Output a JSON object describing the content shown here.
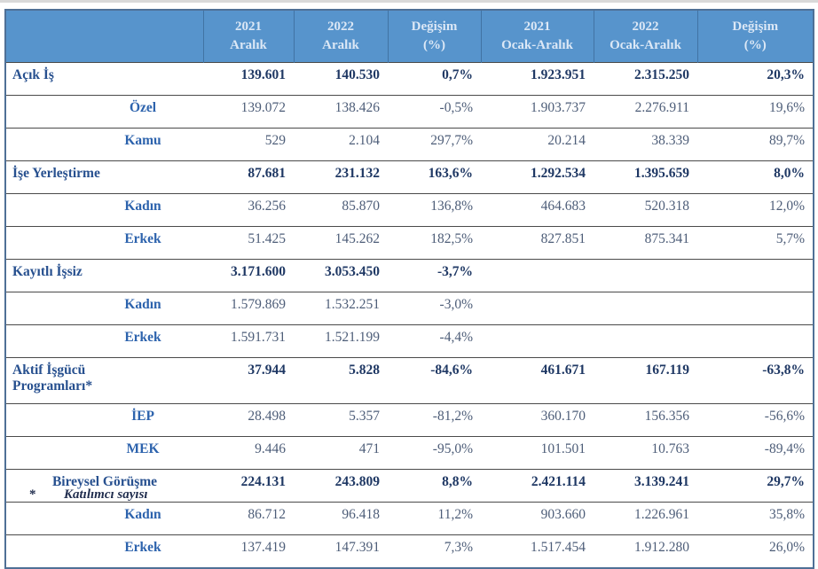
{
  "colors": {
    "header_bg": "#5794cc",
    "header_text": "#dce8f6",
    "category_label": "#27508f",
    "sub_label": "#2d63ad",
    "value_bold": "#1f3864",
    "value_regular": "#4d5d78",
    "row_divider": "#4a4a4a",
    "outer_border": "#4f7096",
    "top_rule": "#d9d9d9"
  },
  "table": {
    "columns": [
      {
        "label": ""
      },
      {
        "label": "2021\nAralık"
      },
      {
        "label": "2022\nAralık"
      },
      {
        "label": "Değişim\n(%)"
      },
      {
        "label": "2021\nOcak-Aralık"
      },
      {
        "label": "2022\nOcak-Aralık"
      },
      {
        "label": "Değişim\n(%)"
      }
    ],
    "rows": [
      {
        "label": "Açık İş",
        "style": "category",
        "label_align": "left",
        "values": [
          "139.601",
          "140.530",
          "0,7%",
          "1.923.951",
          "2.315.250",
          "20,3%"
        ]
      },
      {
        "label": "Özel",
        "style": "sub",
        "label_align": "indent-center",
        "values": [
          "139.072",
          "138.426",
          "-0,5%",
          "1.903.737",
          "2.276.911",
          "19,6%"
        ]
      },
      {
        "label": "Kamu",
        "style": "sub",
        "label_align": "indent-center",
        "values": [
          "529",
          "2.104",
          "297,7%",
          "20.214",
          "38.339",
          "89,7%"
        ]
      },
      {
        "label": "İşe Yerleştirme",
        "style": "category",
        "label_align": "left",
        "values": [
          "87.681",
          "231.132",
          "163,6%",
          "1.292.534",
          "1.395.659",
          "8,0%"
        ]
      },
      {
        "label": "Kadın",
        "style": "sub",
        "label_align": "indent-center",
        "values": [
          "36.256",
          "85.870",
          "136,8%",
          "464.683",
          "520.318",
          "12,0%"
        ]
      },
      {
        "label": "Erkek",
        "style": "sub",
        "label_align": "indent-center",
        "values": [
          "51.425",
          "145.262",
          "182,5%",
          "827.851",
          "875.341",
          "5,7%"
        ]
      },
      {
        "label": "Kayıtlı İşsiz",
        "style": "category",
        "label_align": "left",
        "values": [
          "3.171.600",
          "3.053.450",
          "-3,7%",
          "",
          "",
          ""
        ]
      },
      {
        "label": "Kadın",
        "style": "sub",
        "label_align": "indent-center",
        "values": [
          "1.579.869",
          "1.532.251",
          "-3,0%",
          "",
          "",
          ""
        ]
      },
      {
        "label": "Erkek",
        "style": "sub",
        "label_align": "indent-center",
        "values": [
          "1.591.731",
          "1.521.199",
          "-4,4%",
          "",
          "",
          ""
        ]
      },
      {
        "label": "Aktif İşgücü\nProgramları*",
        "style": "category",
        "label_align": "left",
        "tall": true,
        "values": [
          "37.944",
          "5.828",
          "-84,6%",
          "461.671",
          "167.119",
          "-63,8%"
        ]
      },
      {
        "label": "İEP",
        "style": "sub",
        "label_align": "indent-center",
        "values": [
          "28.498",
          "5.357",
          "-81,2%",
          "360.170",
          "156.356",
          "-56,6%"
        ]
      },
      {
        "label": "MEK",
        "style": "sub",
        "label_align": "indent-center",
        "values": [
          "9.446",
          "471",
          "-95,0%",
          "101.501",
          "10.763",
          "-89,4%"
        ]
      },
      {
        "label": "Bireysel Görüşme",
        "style": "category",
        "label_align": "center",
        "values": [
          "224.131",
          "243.809",
          "8,8%",
          "2.421.114",
          "3.139.241",
          "29,7%"
        ]
      },
      {
        "label": "Kadın",
        "style": "sub",
        "label_align": "indent-center",
        "values": [
          "86.712",
          "96.418",
          "11,2%",
          "903.660",
          "1.226.961",
          "35,8%"
        ]
      },
      {
        "label": "Erkek",
        "style": "sub",
        "label_align": "indent-center",
        "values": [
          "137.419",
          "147.391",
          "7,3%",
          "1.517.454",
          "1.912.280",
          "26,0%"
        ]
      }
    ]
  },
  "footnote": {
    "marker": "*",
    "text": "Katılımcı sayısı"
  }
}
